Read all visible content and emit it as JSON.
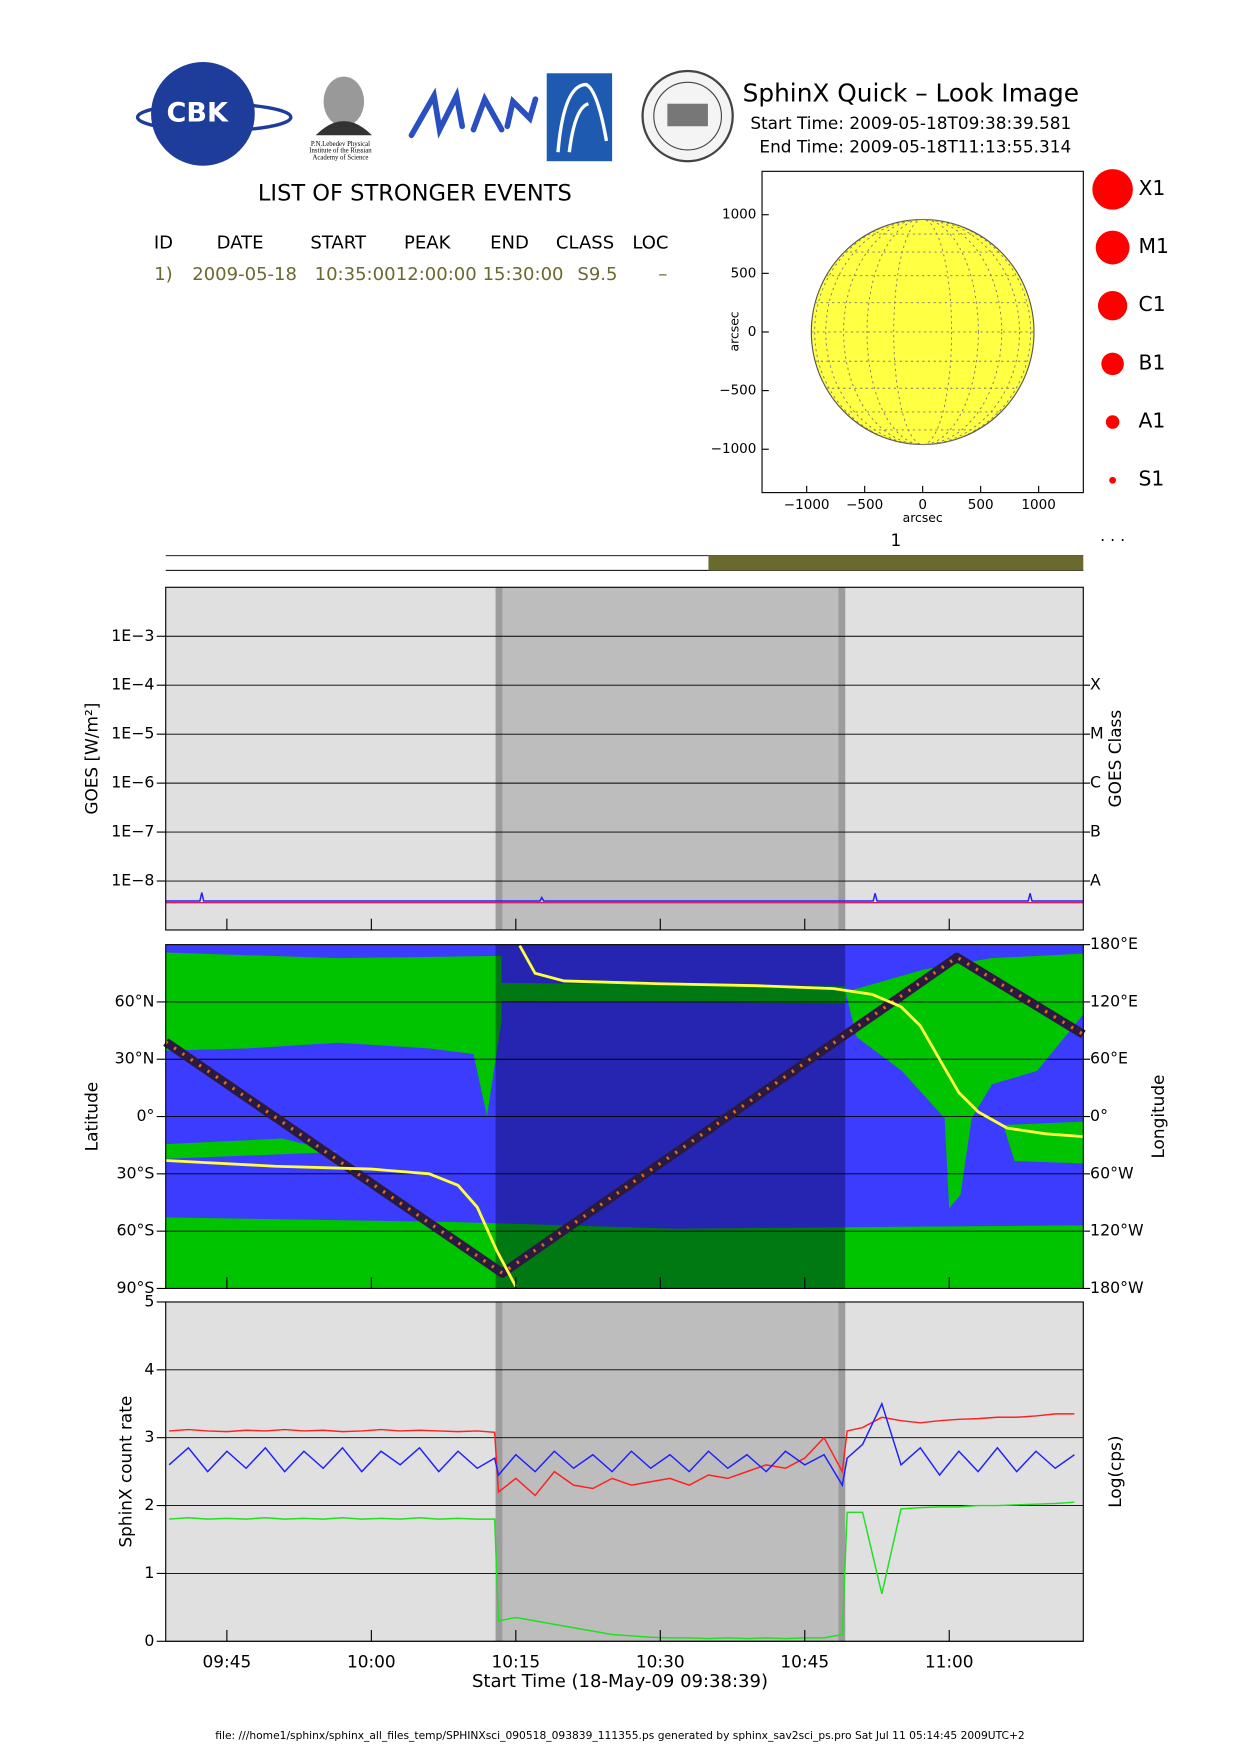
{
  "header": {
    "title": "SphinX Quick – Look Image",
    "start_time": "Start Time: 2009-05-18T09:38:39.581",
    "end_time": "End Time: 2009-05-18T11:13:55.314",
    "logo_text": "CBK",
    "logo_caption": [
      "P.N.Lebedev Physical",
      "Institute of the Russian",
      "Academy of Science"
    ]
  },
  "events": {
    "title": "LIST OF STRONGER EVENTS",
    "columns": [
      "ID",
      "DATE",
      "START",
      "PEAK",
      "END",
      "CLASS",
      "LOC"
    ],
    "rows": [
      [
        "1)",
        "2009-05-18",
        "10:35:00",
        "12:00:00",
        "15:30:00",
        "S9.5",
        "–"
      ]
    ]
  },
  "flare_classes": [
    "X1",
    "M1",
    "C1",
    "B1",
    "A1",
    "S1"
  ],
  "more": "· · ·",
  "footer": "file: ///home1/sphinx/sphinx_all_files_temp/SPHINXsci_090518_093839_111355.ps generated by sphinx_sav2sci_ps.pro Sat Jul 11 05:14:45 2009UTC+2",
  "chart_data": [
    {
      "type": "disk",
      "xlabel": "arcsec",
      "ylabel": "arcsec",
      "xlim": [
        -1385,
        1385
      ],
      "ylim": [
        -1370,
        1370
      ],
      "xticks": [
        {
          "value": -1000,
          "label": "−1000"
        },
        {
          "value": -500,
          "label": "−500"
        },
        0,
        500,
        1000
      ],
      "yticks": [
        {
          "value": -1000,
          "label": "−1000"
        },
        {
          "value": -500,
          "label": "−500"
        },
        0,
        500,
        1000
      ],
      "disk_radius": 960,
      "color": "#ffff44"
    },
    {
      "type": "timeline",
      "xlim": [
        578.65,
        673.92
      ],
      "intervals": [
        {
          "name": "1",
          "start": 635,
          "end": 930,
          "color": "#6b6a2e"
        }
      ]
    },
    {
      "type": "line",
      "log_y": true,
      "grid": true,
      "ylabel": "GOES [W/m²]",
      "y2label": "GOES Class",
      "xlim": [
        578.65,
        673.92
      ],
      "ylim": [
        1e-09,
        0.01
      ],
      "yticks": [
        {
          "value": 1e-08,
          "label": "1E−8"
        },
        {
          "value": 1e-07,
          "label": "1E−7"
        },
        {
          "value": 1e-06,
          "label": "1E−6"
        },
        {
          "value": 1e-05,
          "label": "1E−5"
        },
        {
          "value": 0.0001,
          "label": "1E−4"
        },
        {
          "value": 0.001,
          "label": "1E−3"
        }
      ],
      "y2ticks": [
        {
          "value": 1e-08,
          "label": "A"
        },
        {
          "value": 1e-07,
          "label": "B"
        },
        {
          "value": 1e-06,
          "label": "C"
        },
        {
          "value": 1e-05,
          "label": "M"
        },
        {
          "value": 0.0001,
          "label": "X"
        }
      ],
      "shaded_intervals": [
        [
          612.9,
          649.2
        ]
      ],
      "x": [
        578.65,
        582.2,
        582.4,
        582.6,
        617.5,
        617.7,
        617.9,
        652.1,
        652.3,
        652.5,
        668.2,
        668.4,
        668.6,
        673.92
      ],
      "series": [
        {
          "color": "#d02060",
          "values": [
            3.6e-09,
            3.6e-09,
            3.6e-09,
            3.6e-09,
            3.6e-09,
            3.6e-09,
            3.6e-09,
            3.6e-09,
            3.6e-09,
            3.6e-09,
            3.6e-09,
            3.6e-09,
            3.6e-09,
            3.6e-09
          ]
        },
        {
          "color": "#2020ff",
          "values": [
            3.9e-09,
            3.9e-09,
            5.8e-09,
            3.9e-09,
            3.9e-09,
            4.6e-09,
            3.9e-09,
            3.9e-09,
            5.6e-09,
            3.9e-09,
            3.9e-09,
            5.6e-09,
            3.9e-09,
            3.9e-09
          ]
        }
      ]
    },
    {
      "type": "ground_track",
      "grid": true,
      "ylabel": "Latitude",
      "y2label": "Longitude",
      "xlim": [
        578.65,
        673.92
      ],
      "ylim": [
        -90,
        90
      ],
      "y2lim": [
        -180,
        180
      ],
      "yticks": [
        {
          "value": -90,
          "label": "90°S"
        },
        {
          "value": -60,
          "label": "60°S"
        },
        {
          "value": -30,
          "label": "30°S"
        },
        {
          "value": 0,
          "label": "0°"
        },
        {
          "value": 30,
          "label": "30°N"
        },
        {
          "value": 60,
          "label": "60°N"
        }
      ],
      "y2ticks": [
        {
          "value": -180,
          "label": "180°W"
        },
        {
          "value": -120,
          "label": "120°W"
        },
        {
          "value": -60,
          "label": "60°W"
        },
        {
          "value": 0,
          "label": "0°"
        },
        {
          "value": 60,
          "label": "60°E"
        },
        {
          "value": 120,
          "label": "120°E"
        },
        {
          "value": 180,
          "label": "180°E"
        }
      ],
      "shaded_intervals": [
        [
          612.9,
          649.2
        ]
      ],
      "series": [
        {
          "color": "#2a1a40",
          "x": [
            578.65,
            613.6,
            660.8,
            673.92
          ],
          "values": [
            39,
            -82,
            83.4,
            43
          ]
        },
        {
          "color": "#ffff40",
          "axis": "y2",
          "x": [
            578.65,
            590,
            600,
            606,
            609,
            611,
            613,
            615,
            615.2,
            615.4,
            617,
            620,
            630,
            640,
            648,
            652,
            655,
            657,
            659,
            661,
            663,
            666,
            670,
            673.92
          ],
          "values": [
            -46,
            -52,
            -55,
            -60,
            -72,
            -95,
            -140,
            -178,
            null,
            179,
            150,
            142,
            139,
            137,
            134,
            128,
            115,
            95,
            60,
            25,
            5,
            -12,
            -18,
            -21
          ]
        }
      ]
    },
    {
      "type": "line",
      "grid": true,
      "ylabel": "SphinX count rate",
      "y2label": "Log(cps)",
      "xlabel": "Start Time (18-May-09 09:38:39)",
      "xlim": [
        578.65,
        673.92
      ],
      "ylim": [
        0,
        5
      ],
      "yticks": [
        0,
        1,
        2,
        3,
        4,
        5
      ],
      "xticks": [
        {
          "value": 585,
          "label": "09:45"
        },
        {
          "value": 600,
          "label": "10:00"
        },
        {
          "value": 615,
          "label": "10:15"
        },
        {
          "value": 630,
          "label": "10:30"
        },
        {
          "value": 645,
          "label": "10:45"
        },
        {
          "value": 660,
          "label": "11:00"
        }
      ],
      "shaded_intervals": [
        [
          612.9,
          649.2
        ]
      ],
      "x": [
        579,
        581,
        583,
        585,
        587,
        589,
        591,
        593,
        595,
        597,
        599,
        601,
        603,
        605,
        607,
        609,
        611,
        612.8,
        613.2,
        615,
        617,
        619,
        621,
        623,
        625,
        627,
        629,
        631,
        633,
        635,
        637,
        639,
        641,
        643,
        645,
        647,
        648.9,
        649.4,
        651,
        653,
        655,
        657,
        659,
        661,
        663,
        665,
        667,
        669,
        671,
        673
      ],
      "series": [
        {
          "color": "#ff2020",
          "values": [
            3.1,
            3.12,
            3.1,
            3.09,
            3.11,
            3.1,
            3.12,
            3.1,
            3.11,
            3.09,
            3.1,
            3.12,
            3.1,
            3.11,
            3.1,
            3.09,
            3.1,
            3.08,
            2.2,
            2.4,
            2.15,
            2.5,
            2.3,
            2.25,
            2.4,
            2.3,
            2.35,
            2.4,
            2.3,
            2.45,
            2.4,
            2.5,
            2.6,
            2.55,
            2.7,
            3.0,
            2.5,
            3.1,
            3.15,
            3.3,
            3.25,
            3.22,
            3.25,
            3.27,
            3.28,
            3.3,
            3.3,
            3.32,
            3.35,
            3.35
          ]
        },
        {
          "color": "#2020ff",
          "values": [
            2.6,
            2.85,
            2.5,
            2.8,
            2.55,
            2.85,
            2.5,
            2.8,
            2.55,
            2.85,
            2.5,
            2.8,
            2.6,
            2.85,
            2.5,
            2.8,
            2.55,
            2.7,
            2.45,
            2.75,
            2.5,
            2.8,
            2.55,
            2.75,
            2.5,
            2.8,
            2.55,
            2.75,
            2.5,
            2.8,
            2.55,
            2.75,
            2.5,
            2.8,
            2.6,
            2.75,
            2.3,
            2.7,
            2.9,
            3.5,
            2.6,
            2.85,
            2.45,
            2.8,
            2.5,
            2.85,
            2.5,
            2.8,
            2.55,
            2.75
          ]
        },
        {
          "color": "#20e020",
          "values": [
            1.8,
            1.82,
            1.8,
            1.81,
            1.8,
            1.82,
            1.8,
            1.81,
            1.8,
            1.82,
            1.8,
            1.81,
            1.8,
            1.82,
            1.8,
            1.81,
            1.8,
            1.8,
            0.3,
            0.35,
            0.3,
            0.25,
            0.2,
            0.15,
            0.1,
            0.08,
            0.06,
            0.05,
            0.05,
            0.04,
            0.05,
            0.04,
            0.05,
            0.04,
            0.05,
            0.05,
            0.1,
            1.9,
            1.9,
            0.7,
            1.95,
            1.97,
            1.98,
            1.98,
            2.0,
            2.0,
            2.01,
            2.02,
            2.03,
            2.05
          ]
        }
      ]
    }
  ]
}
